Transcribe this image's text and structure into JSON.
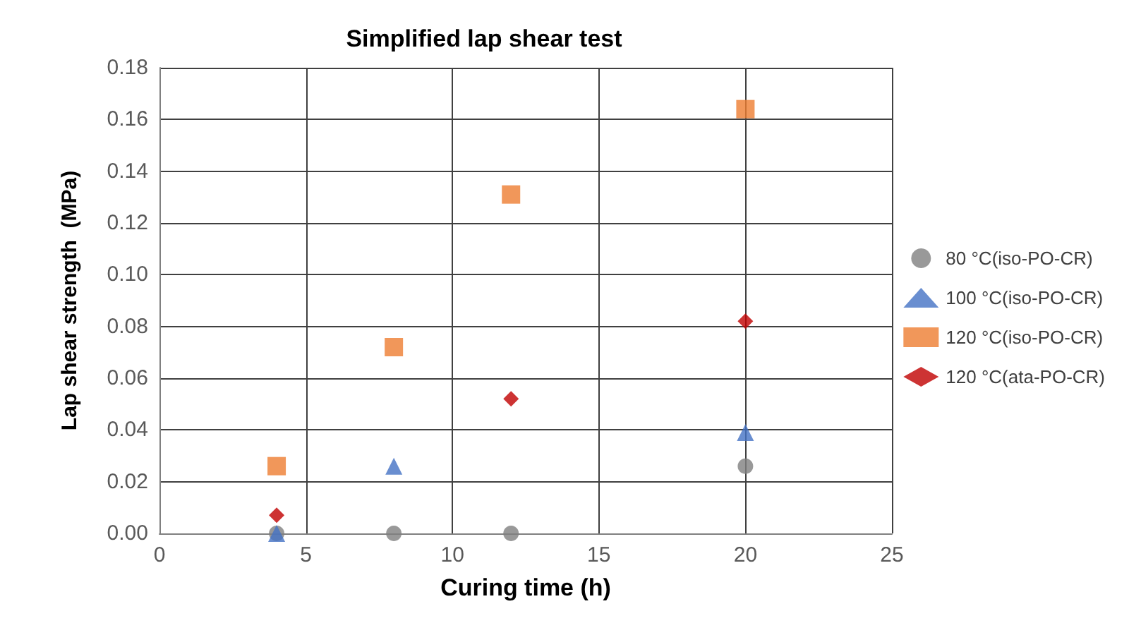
{
  "chart_data": {
    "type": "scatter",
    "title": "Simplified lap shear test",
    "xlabel": "Curing time (h)",
    "ylabel": "Lap shear strength  (MPa)",
    "xlim": [
      0,
      25
    ],
    "xticks": [
      0,
      5,
      10,
      15,
      20,
      25
    ],
    "ylim": [
      0,
      0.18
    ],
    "yticks": [
      {
        "value": 0,
        "label": "0.00"
      },
      {
        "value": 0.02,
        "label": "0.02"
      },
      {
        "value": 0.04,
        "label": "0.04"
      },
      {
        "value": 0.06,
        "label": "0.06"
      },
      {
        "value": 0.08,
        "label": "0.08"
      },
      {
        "value": 0.1,
        "label": "0.10"
      },
      {
        "value": 0.12,
        "label": "0.12"
      },
      {
        "value": 0.14,
        "label": "0.14"
      },
      {
        "value": 0.16,
        "label": "0.16"
      },
      {
        "value": 0.18,
        "label": "0.18"
      }
    ],
    "grid": true,
    "legend": "right",
    "series": [
      {
        "name": "80 °C(iso-PO-CR)",
        "color": "#808080",
        "marker": "circle",
        "x": [
          4,
          8,
          12,
          20
        ],
        "values": [
          0,
          0,
          0,
          0.026
        ]
      },
      {
        "name": "100 °C(iso-PO-CR)",
        "color": "#4472c4",
        "marker": "triangle",
        "x": [
          4,
          8,
          20
        ],
        "values": [
          0,
          0.026,
          0.039
        ]
      },
      {
        "name": "120 °C(iso-PO-CR)",
        "color": "#ed7d31",
        "marker": "square",
        "x": [
          4,
          8,
          12,
          20
        ],
        "values": [
          0.026,
          0.072,
          0.131,
          0.164
        ]
      },
      {
        "name": "120 °C(ata-PO-CR)",
        "color": "#c00000",
        "marker": "diamond",
        "x": [
          4,
          12,
          20
        ],
        "values": [
          0.007,
          0.052,
          0.082
        ]
      }
    ]
  }
}
